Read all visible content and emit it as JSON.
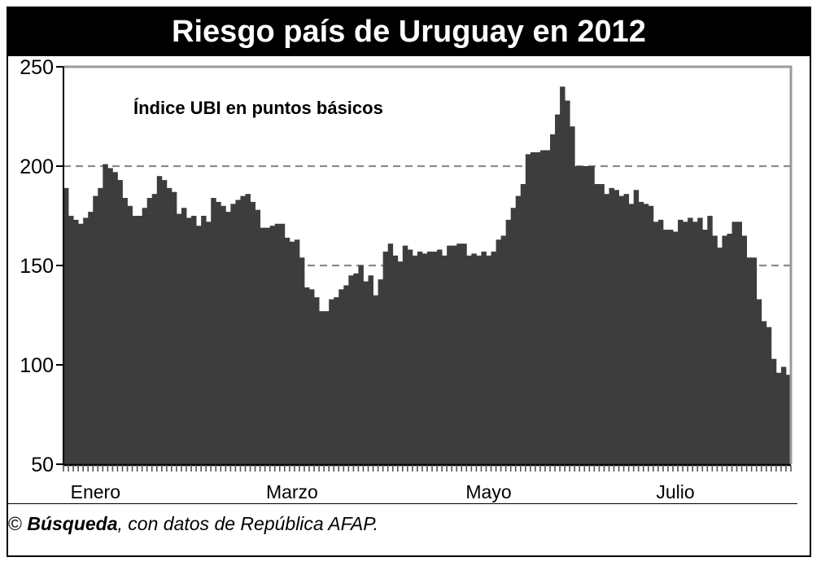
{
  "title": "Riesgo país de Uruguay en 2012",
  "footer": {
    "copyright": "©",
    "source_brand": "Búsqueda",
    "source_rest": ", con datos de República AFAP."
  },
  "colors": {
    "bar": "#3d3d3d",
    "grid": "#8c8c8c",
    "frame": "#9a9a9a",
    "title_bg": "#000000",
    "title_text": "#ffffff"
  },
  "chart_data": {
    "type": "bar",
    "title": "Riesgo país de Uruguay en 2012",
    "subtitle": "Índice UBI en puntos básicos",
    "xlabel": "",
    "ylabel": "",
    "ylim": [
      50,
      250
    ],
    "yticks": [
      50,
      100,
      150,
      200,
      250
    ],
    "grid": "dashed horizontal at 150 and 200",
    "month_labels": [
      {
        "label": "Enero",
        "index": 6
      },
      {
        "label": "Marzo",
        "index": 46
      },
      {
        "label": "Mayo",
        "index": 86
      },
      {
        "label": "Julio",
        "index": 124
      }
    ],
    "values": [
      189,
      175,
      173,
      171,
      174,
      177,
      185,
      189,
      201,
      199,
      197,
      193,
      184,
      180,
      175,
      175,
      179,
      184,
      186,
      195,
      193,
      189,
      187,
      176,
      179,
      174,
      175,
      170,
      175,
      172,
      184,
      182,
      180,
      177,
      181,
      183,
      185,
      186,
      182,
      178,
      169,
      169,
      170,
      171,
      171,
      164,
      162,
      163,
      154,
      139,
      138,
      134,
      127,
      127,
      133,
      134,
      138,
      140,
      145,
      146,
      150,
      142,
      145,
      135,
      143,
      157,
      161,
      155,
      152,
      160,
      158,
      155,
      157,
      156,
      157,
      157,
      158,
      155,
      160,
      160,
      161,
      161,
      155,
      156,
      155,
      157,
      155,
      157,
      163,
      165,
      173,
      179,
      185,
      191,
      206,
      207,
      207,
      208,
      208,
      216,
      226,
      240,
      233,
      220,
      200,
      200,
      200,
      200,
      191,
      191,
      186,
      189,
      188,
      185,
      186,
      181,
      188,
      182,
      181,
      180,
      172,
      173,
      168,
      168,
      167,
      173,
      172,
      174,
      172,
      174,
      168,
      175,
      165,
      159,
      165,
      166,
      172,
      172,
      165,
      154,
      154,
      133,
      122,
      119,
      103,
      96,
      99,
      95
    ]
  }
}
